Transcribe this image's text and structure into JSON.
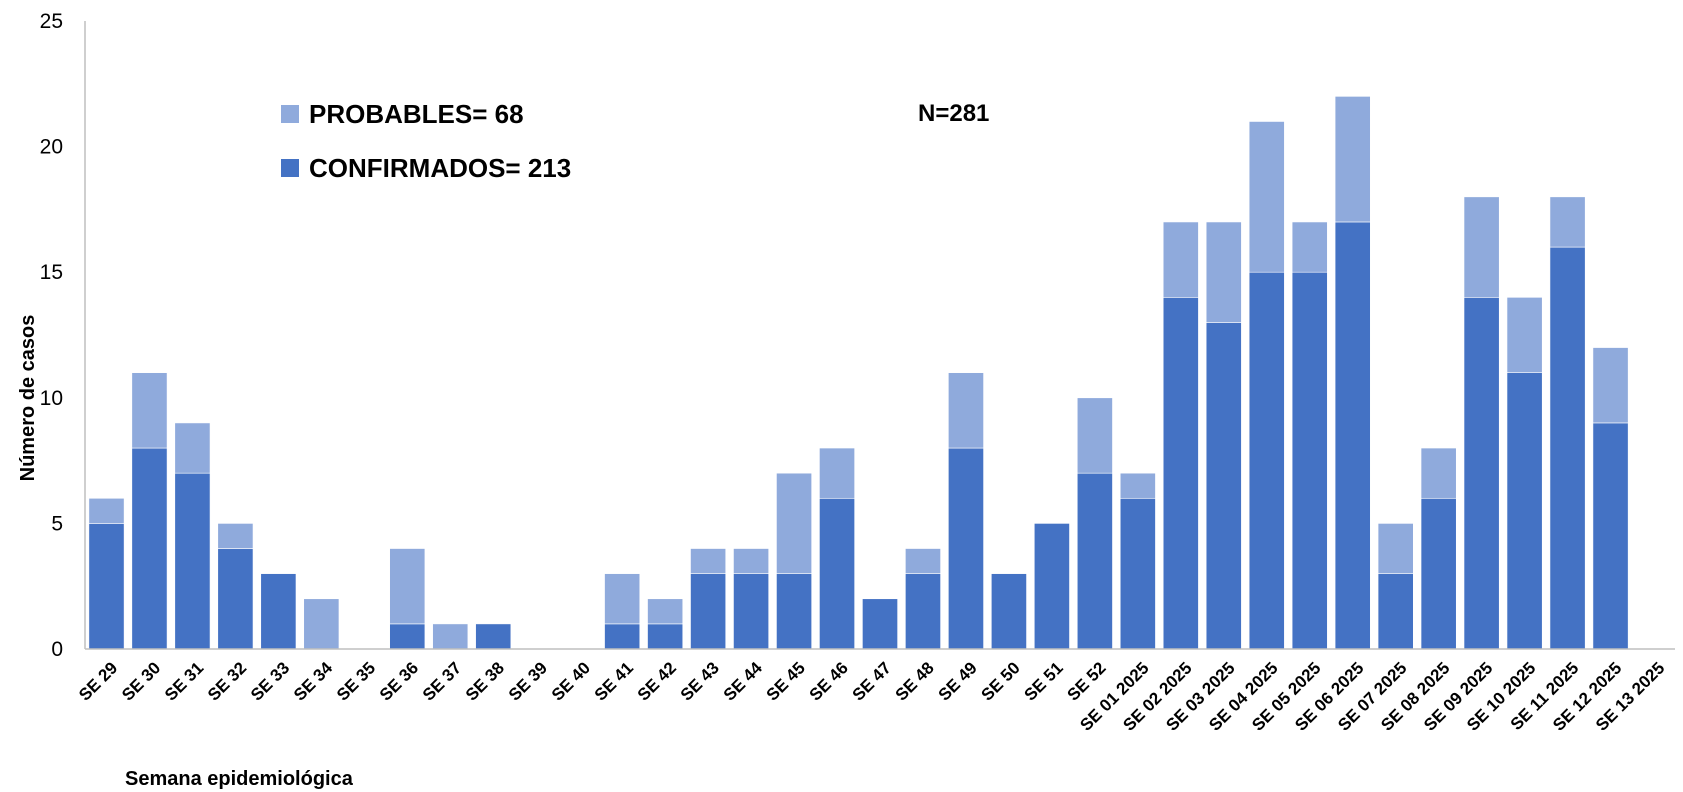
{
  "chart_data": {
    "type": "bar",
    "stacked": true,
    "categories": [
      "SE 29",
      "SE 30",
      "SE 31",
      "SE 32",
      "SE 33",
      "SE 34",
      "SE 35",
      "SE 36",
      "SE 37",
      "SE 38",
      "SE 39",
      "SE 40",
      "SE 41",
      "SE 42",
      "SE 43",
      "SE 44",
      "SE 45",
      "SE 46",
      "SE 47",
      "SE 48",
      "SE 49",
      "SE 50",
      "SE 51",
      "SE 52",
      "SE 01 2025",
      "SE 02 2025",
      "SE 03 2025",
      "SE 04 2025",
      "SE 05 2025",
      "SE 06 2025",
      "SE 07 2025",
      "SE 08 2025",
      "SE 09 2025",
      "SE 10 2025",
      "SE 11 2025",
      "SE 12 2025",
      "SE 13 2025"
    ],
    "series": [
      {
        "name": "CONFIRMADOS= 213",
        "color": "#4472c4",
        "values": [
          5,
          8,
          7,
          4,
          3,
          0,
          0,
          1,
          0,
          1,
          0,
          0,
          1,
          1,
          3,
          3,
          3,
          6,
          2,
          3,
          8,
          3,
          5,
          7,
          6,
          14,
          13,
          15,
          15,
          17,
          3,
          6,
          14,
          11,
          16,
          9,
          0
        ]
      },
      {
        "name": "PROBABLES= 68",
        "color": "#8faadc",
        "values": [
          1,
          3,
          2,
          1,
          0,
          2,
          0,
          3,
          1,
          0,
          0,
          0,
          2,
          1,
          1,
          1,
          4,
          2,
          0,
          1,
          3,
          0,
          0,
          3,
          1,
          3,
          4,
          6,
          2,
          5,
          2,
          2,
          4,
          3,
          2,
          3,
          0
        ]
      }
    ],
    "annotation": "N=281",
    "xlabel": "Semana epidemiológica",
    "ylabel": "Número de casos",
    "ylim": [
      0,
      25
    ],
    "yticks": [
      0,
      5,
      10,
      15,
      20,
      25
    ],
    "grid": false,
    "legend_position": "top-left"
  }
}
